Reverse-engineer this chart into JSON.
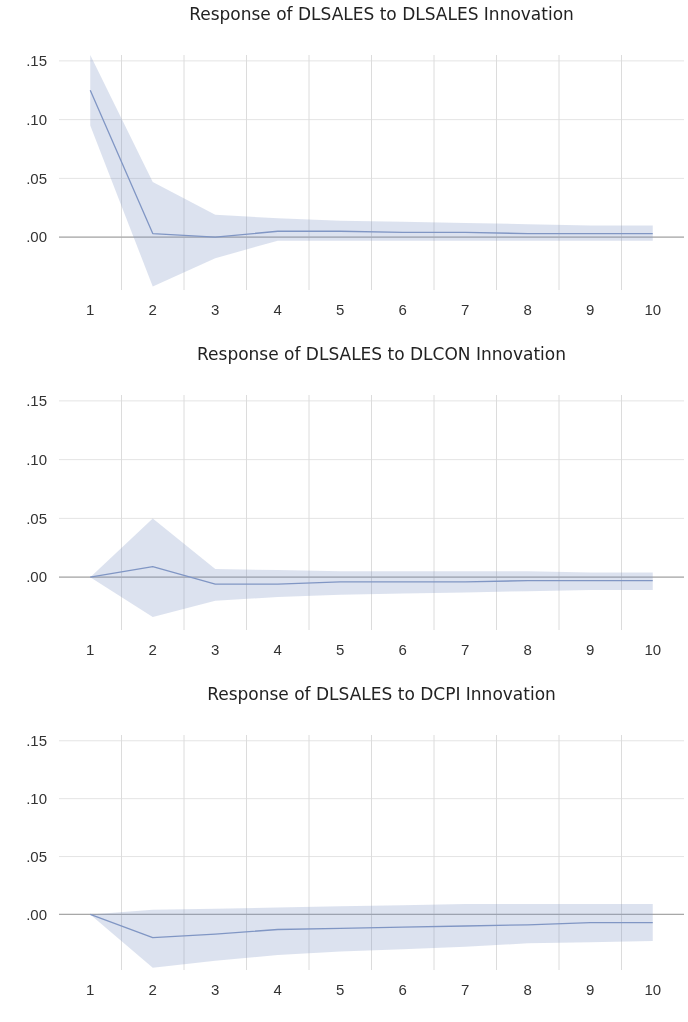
{
  "chart_data": [
    {
      "type": "line",
      "title": "Response of DLSALES to DLSALES Innovation",
      "categories": [
        "1",
        "2",
        "3",
        "4",
        "5",
        "6",
        "7",
        "8",
        "9",
        "10"
      ],
      "series": [
        {
          "color": "#8096c4",
          "values": [
            0.125,
            0.003,
            0.0,
            0.005,
            0.005,
            0.004,
            0.004,
            0.003,
            0.003,
            0.003
          ],
          "lower": [
            0.095,
            -0.042,
            -0.018,
            -0.003,
            -0.003,
            -0.003,
            -0.003,
            -0.003,
            -0.003,
            -0.003
          ],
          "upper": [
            0.155,
            0.047,
            0.019,
            0.016,
            0.014,
            0.013,
            0.012,
            0.011,
            0.01,
            0.01
          ]
        }
      ],
      "ylim": [
        -0.045,
        0.155
      ],
      "yticks": [
        {
          "value": 0.0,
          "label": ".00"
        },
        {
          "value": 0.05,
          "label": ".05"
        },
        {
          "value": 0.1,
          "label": ".10"
        },
        {
          "value": 0.15,
          "label": ".15"
        }
      ],
      "grid": true,
      "ref_lines": [
        {
          "axis": "y",
          "value": 0,
          "color": "#a8a8a8"
        }
      ]
    },
    {
      "type": "line",
      "title": "Response of DLSALES to DLCON Innovation",
      "categories": [
        "1",
        "2",
        "3",
        "4",
        "5",
        "6",
        "7",
        "8",
        "9",
        "10"
      ],
      "series": [
        {
          "color": "#8096c4",
          "values": [
            0,
            0.009,
            -0.006,
            -0.006,
            -0.004,
            -0.004,
            -0.004,
            -0.003,
            -0.003,
            -0.003
          ],
          "lower": [
            0,
            -0.034,
            -0.02,
            -0.017,
            -0.015,
            -0.014,
            -0.013,
            -0.012,
            -0.011,
            -0.011
          ],
          "upper": [
            0,
            0.05,
            0.007,
            0.006,
            0.005,
            0.005,
            0.005,
            0.005,
            0.004,
            0.004
          ]
        }
      ],
      "ylim": [
        -0.045,
        0.155
      ],
      "yticks": [
        {
          "value": 0.0,
          "label": ".00"
        },
        {
          "value": 0.05,
          "label": ".05"
        },
        {
          "value": 0.1,
          "label": ".10"
        },
        {
          "value": 0.15,
          "label": ".15"
        }
      ],
      "grid": true,
      "ref_lines": [
        {
          "axis": "y",
          "value": 0,
          "color": "#a8a8a8"
        }
      ]
    },
    {
      "type": "line",
      "title": "Response of DLSALES to DCPI Innovation",
      "categories": [
        "1",
        "2",
        "3",
        "4",
        "5",
        "6",
        "7",
        "8",
        "9",
        "10"
      ],
      "series": [
        {
          "color": "#8096c4",
          "values": [
            0,
            -0.02,
            -0.017,
            -0.013,
            -0.012,
            -0.011,
            -0.01,
            -0.009,
            -0.007,
            -0.007
          ],
          "lower": [
            0,
            -0.046,
            -0.04,
            -0.035,
            -0.032,
            -0.03,
            -0.028,
            -0.025,
            -0.024,
            -0.023
          ],
          "upper": [
            0,
            0.004,
            0.005,
            0.006,
            0.007,
            0.008,
            0.009,
            0.009,
            0.009,
            0.009
          ]
        }
      ],
      "ylim": [
        -0.048,
        0.155
      ],
      "yticks": [
        {
          "value": 0.0,
          "label": ".00"
        },
        {
          "value": 0.05,
          "label": ".05"
        },
        {
          "value": 0.1,
          "label": ".10"
        },
        {
          "value": 0.15,
          "label": ".15"
        }
      ],
      "grid": true,
      "ref_lines": [
        {
          "axis": "y",
          "value": 0,
          "color": "#a8a8a8"
        }
      ]
    }
  ]
}
